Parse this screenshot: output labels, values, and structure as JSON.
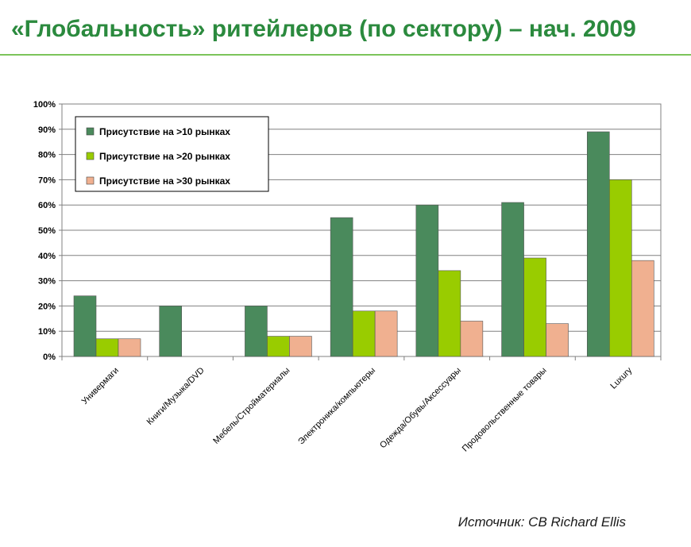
{
  "title": "«Глобальность» ритейлеров (по сектору) – нач. 2009",
  "source": "Источник: CB Richard Ellis",
  "chart_data": {
    "type": "bar",
    "title": "",
    "xlabel": "",
    "ylabel": "",
    "ylim": [
      0,
      100
    ],
    "yticks": [
      "0%",
      "10%",
      "20%",
      "30%",
      "40%",
      "50%",
      "60%",
      "70%",
      "80%",
      "90%",
      "100%"
    ],
    "grid": true,
    "legend_position": "top-left",
    "categories": [
      "Универмаги",
      "Книги/Музыка/DVD",
      "Мебель/Стройматериалы",
      "Электроника/компьютеры",
      "Одежда/Обувь/Аксессуары",
      "Продовольственные товары",
      "Luxury"
    ],
    "series": [
      {
        "name": "Присутствие на >10 рынках",
        "color": "#4a8a5c",
        "values": [
          24,
          20,
          20,
          55,
          60,
          61,
          89
        ]
      },
      {
        "name": "Присутствие на >20 рынках",
        "color": "#99cc00",
        "values": [
          7,
          0,
          8,
          18,
          34,
          39,
          70
        ]
      },
      {
        "name": "Присутствие на >30 рынках",
        "color": "#f0b090",
        "values": [
          7,
          0,
          8,
          18,
          14,
          13,
          38
        ]
      }
    ]
  }
}
